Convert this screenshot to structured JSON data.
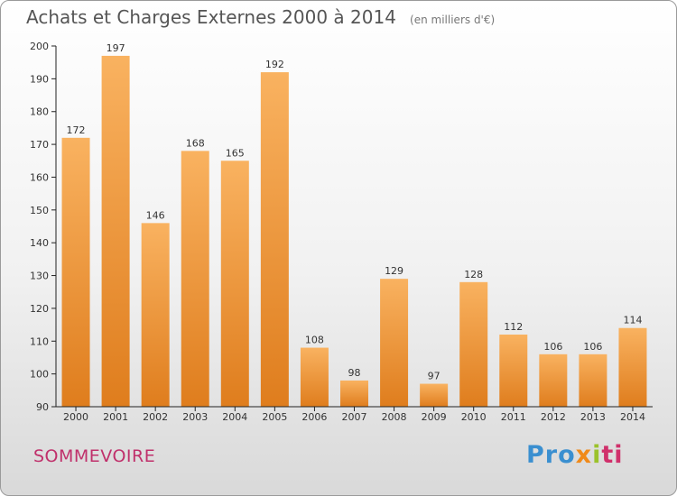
{
  "header": {
    "title": "Achats et Charges Externes 2000 à 2014",
    "subtitle": "(en milliers d'€)"
  },
  "footer": {
    "location": "SOMMEVOIRE",
    "brand_parts": [
      "Pro",
      "x",
      "i",
      "ti"
    ]
  },
  "colors": {
    "bar_light": "#f9b260",
    "bar_dark": "#e0801e",
    "title": "#555555",
    "location": "#c0306b"
  },
  "chart_data": {
    "type": "bar",
    "title": "Achats et Charges Externes 2000 à 2014",
    "subtitle": "(en milliers d'€)",
    "xlabel": "",
    "ylabel": "",
    "categories": [
      "2000",
      "2001",
      "2002",
      "2003",
      "2004",
      "2005",
      "2006",
      "2007",
      "2008",
      "2009",
      "2010",
      "2011",
      "2012",
      "2013",
      "2014"
    ],
    "values": [
      172,
      197,
      146,
      168,
      165,
      192,
      108,
      98,
      129,
      97,
      128,
      112,
      106,
      106,
      114
    ],
    "ylim": [
      90,
      200
    ],
    "yticks": [
      90,
      100,
      110,
      120,
      130,
      140,
      150,
      160,
      170,
      180,
      190,
      200
    ],
    "grid": false,
    "legend": "none"
  }
}
